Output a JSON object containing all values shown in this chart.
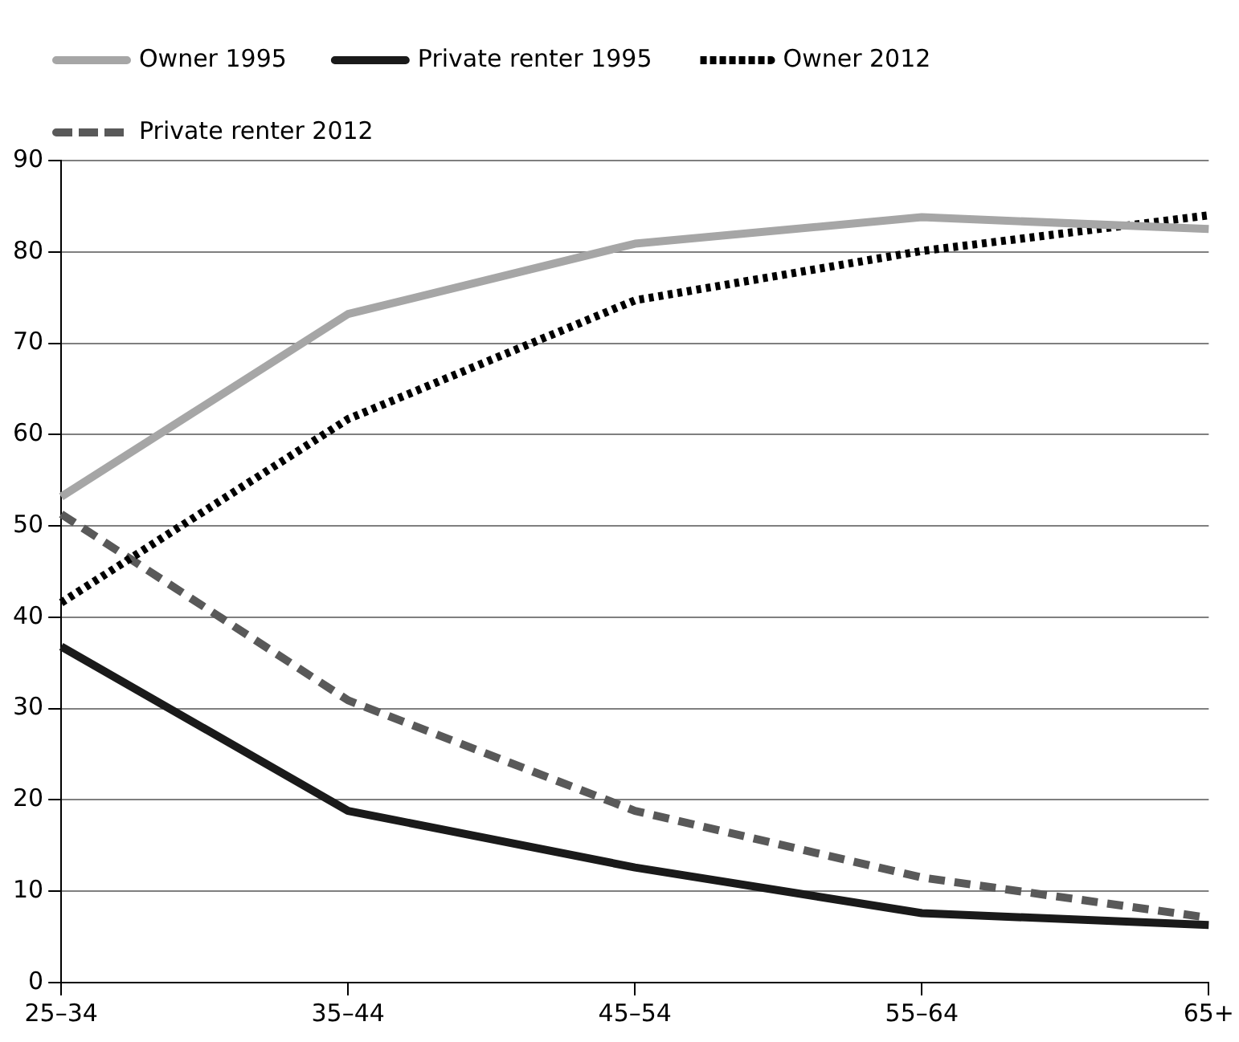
{
  "chart_data": {
    "type": "line",
    "categories": [
      "25–34",
      "35–44",
      "45–54",
      "55–64",
      "65+"
    ],
    "series": [
      {
        "name": "Owner 1995",
        "color": "#a6a6a6",
        "line_style": "solid",
        "values": [
          53.2,
          73.2,
          80.9,
          83.8,
          82.5
        ]
      },
      {
        "name": "Private renter 1995",
        "color": "#1a1a1a",
        "line_style": "solid",
        "values": [
          36.8,
          18.8,
          12.6,
          7.6,
          6.3
        ]
      },
      {
        "name": "Owner 2012",
        "color": "#000000",
        "line_style": "dotted",
        "values": [
          41.6,
          61.7,
          74.7,
          80.1,
          84.0
        ]
      },
      {
        "name": "Private renter 2012",
        "color": "#595959",
        "line_style": "dashed",
        "values": [
          51.3,
          30.9,
          18.8,
          11.5,
          7.1
        ]
      }
    ],
    "ylim": [
      0,
      90
    ],
    "yticks": [
      0,
      10,
      20,
      30,
      40,
      50,
      60,
      70,
      80,
      90
    ],
    "grid": "y",
    "legend": "top",
    "marker": "none"
  }
}
